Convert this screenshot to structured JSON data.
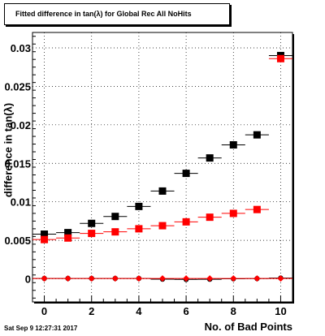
{
  "chart_data": {
    "type": "scatter",
    "title": "Fitted difference in tan(λ) for Global Rec All NoHits",
    "xlabel": "No. of Bad Points",
    "ylabel": "difference in tan(λ)",
    "xlim": [
      -0.5,
      10.5
    ],
    "ylim": [
      -0.003,
      0.032
    ],
    "grid": true,
    "x_ticks": [
      0,
      2,
      4,
      6,
      8,
      10
    ],
    "x_tick_labels": [
      "0",
      "2",
      "4",
      "6",
      "8",
      "10"
    ],
    "y_ticks": [
      0,
      0.005,
      0.01,
      0.015,
      0.02,
      0.025,
      0.03
    ],
    "y_tick_labels": [
      "0",
      "0.005",
      "0.01",
      "0.015",
      "0.02",
      "0.025",
      "0.03"
    ],
    "x": [
      0,
      1,
      2,
      3,
      4,
      5,
      6,
      7,
      8,
      9,
      10
    ],
    "series": [
      {
        "color": "#000000",
        "marker": "square",
        "values": [
          0.0058,
          0.006,
          0.0072,
          0.0081,
          0.0094,
          0.0114,
          0.0137,
          0.0157,
          0.0174,
          0.0187,
          0.029
        ]
      },
      {
        "color": "#ff0000",
        "marker": "square",
        "values": [
          0.0051,
          0.0053,
          0.0059,
          0.0061,
          0.0065,
          0.0069,
          0.0074,
          0.008,
          0.0085,
          0.009,
          0.0286
        ]
      },
      {
        "color": "#000000",
        "marker": "circle",
        "values": [
          5e-05,
          5e-05,
          5e-05,
          5e-05,
          5e-05,
          -5e-05,
          -8e-05,
          -6e-05,
          0.0,
          3e-05,
          0.0001
        ]
      },
      {
        "color": "#ff0000",
        "marker": "diamond",
        "values": [
          5e-05,
          5e-05,
          5e-05,
          5e-05,
          5e-05,
          5e-05,
          5e-05,
          5e-05,
          5e-05,
          5e-05,
          5e-05
        ]
      }
    ]
  },
  "footer": {
    "timestamp": "Sat Sep  9 12:27:31 2017"
  }
}
